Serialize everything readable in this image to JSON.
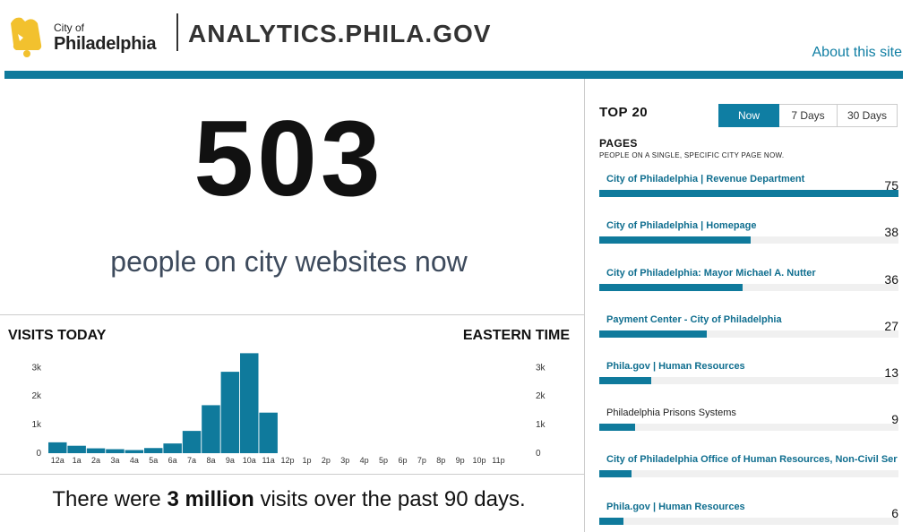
{
  "header": {
    "logo_city": "City of",
    "logo_name": "Philadelphia",
    "site_title": "ANALYTICS.PHILA.GOV",
    "about_link": "About this site",
    "accent_color": "#0f7a9c"
  },
  "realtime": {
    "count": "503",
    "caption": "people on city websites now"
  },
  "visits_today": {
    "title": "VISITS TODAY",
    "timezone": "EASTERN TIME"
  },
  "summary": {
    "prefix": "There were ",
    "highlight": "3 million",
    "suffix": " visits over the past 90 days."
  },
  "top_pages": {
    "title": "TOP 20",
    "tabs": [
      {
        "label": "Now",
        "active": true
      },
      {
        "label": "7 Days",
        "active": false
      },
      {
        "label": "30 Days",
        "active": false
      }
    ],
    "section_title": "PAGES",
    "section_subtitle": "PEOPLE ON A SINGLE, SPECIFIC CITY PAGE NOW.",
    "items": [
      {
        "title": "City of Philadelphia | Revenue Department",
        "count": "75",
        "value": 75,
        "linked": true
      },
      {
        "title": "City of Philadelphia | Homepage",
        "count": "38",
        "value": 38,
        "linked": true
      },
      {
        "title": "City of Philadelphia: Mayor Michael A. Nutter",
        "count": "36",
        "value": 36,
        "linked": true
      },
      {
        "title": "Payment Center - City of Philadelphia",
        "count": "27",
        "value": 27,
        "linked": true
      },
      {
        "title": "Phila.gov | Human Resources",
        "count": "13",
        "value": 13,
        "linked": true
      },
      {
        "title": "Philadelphia Prisons Systems",
        "count": "9",
        "value": 9,
        "linked": false
      },
      {
        "title": "City of Philadelphia Office of Human Resources, Non-Civil Service",
        "count": "",
        "value": 8,
        "linked": true
      },
      {
        "title": "Phila.gov | Human Resources",
        "count": "6",
        "value": 6,
        "linked": true
      }
    ]
  },
  "chart_data": {
    "type": "bar",
    "categories": [
      "12a",
      "1a",
      "2a",
      "3a",
      "4a",
      "5a",
      "6a",
      "7a",
      "8a",
      "9a",
      "10a",
      "11a",
      "12p",
      "1p",
      "2p",
      "3p",
      "4p",
      "5p",
      "6p",
      "7p",
      "8p",
      "9p",
      "10p",
      "11p"
    ],
    "values": [
      380,
      260,
      170,
      140,
      110,
      180,
      340,
      780,
      1680,
      2850,
      3500,
      1420,
      0,
      0,
      0,
      0,
      0,
      0,
      0,
      0,
      0,
      0,
      0,
      0
    ],
    "y_ticks": [
      "0",
      "1k",
      "2k",
      "3k"
    ],
    "ylim": [
      0,
      3700
    ],
    "bar_color": "#0f7a9c",
    "grid": false
  }
}
